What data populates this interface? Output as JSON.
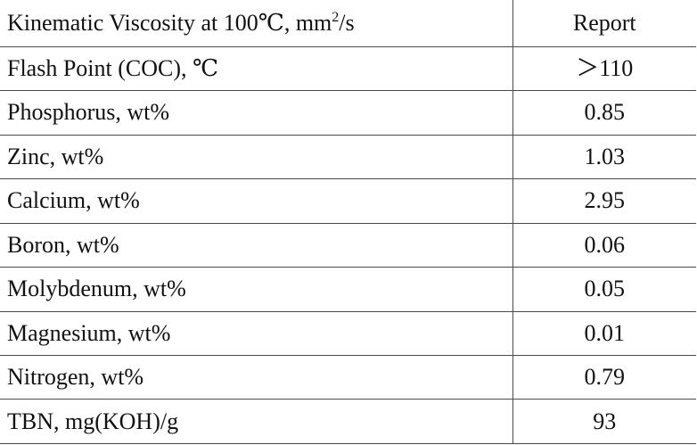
{
  "rows": [
    {
      "property": "Kinematic Viscosity at 100℃, mm",
      "property_sup": "2",
      "property_suffix": "/s",
      "value": "Report"
    },
    {
      "property": "Flash Point (COC), ℃",
      "value": "＞110"
    },
    {
      "property": "Phosphorus, wt%",
      "value": "0.85"
    },
    {
      "property": "Zinc, wt%",
      "value": "1.03"
    },
    {
      "property": "Calcium, wt%",
      "value": "2.95"
    },
    {
      "property": "Boron, wt%",
      "value": "0.06"
    },
    {
      "property": "Molybdenum, wt%",
      "value": "0.05"
    },
    {
      "property": "Magnesium, wt%",
      "value": "0.01"
    },
    {
      "property": "Nitrogen, wt%",
      "value": "0.79"
    },
    {
      "property": "TBN, mg(KOH)/g",
      "value": "93"
    }
  ]
}
